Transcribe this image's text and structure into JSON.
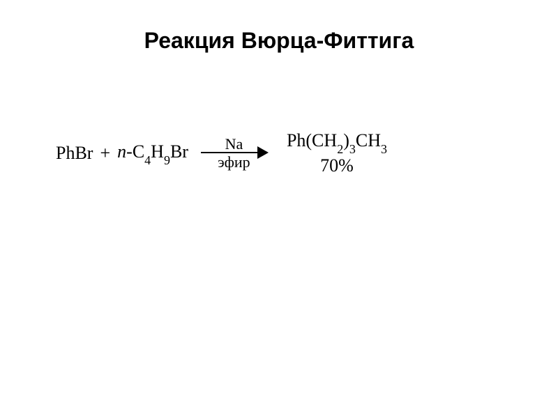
{
  "title": "Реакция Вюрца-Фиттига",
  "reaction": {
    "reactant1": {
      "full": "PhBr"
    },
    "plus": "+",
    "reactant2": {
      "prefix": "n",
      "dash": "-",
      "c_label": "C",
      "c_sub": "4",
      "h_label": "H",
      "h_sub": "9",
      "br": "Br"
    },
    "arrow": {
      "top": "Na",
      "bottom": "эфир"
    },
    "product": {
      "ph": "Ph(CH",
      "sub1": "2",
      "mid": ")",
      "sub2": "3",
      "ch": "CH",
      "sub3": "3"
    },
    "yield": "70%"
  },
  "colors": {
    "background": "#ffffff",
    "text": "#000000"
  },
  "fonts": {
    "title_size": 32,
    "formula_size": 26,
    "sub_size": 18
  }
}
